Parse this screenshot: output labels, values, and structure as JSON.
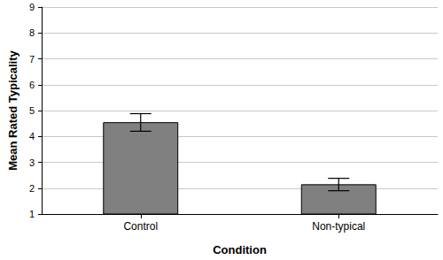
{
  "chart_data": {
    "type": "bar",
    "x_label": "Condition",
    "y_label": "Mean Rated Typicality",
    "categories": [
      "Control",
      "Non-typical"
    ],
    "values": [
      4.55,
      2.15
    ],
    "error_low": [
      4.2,
      1.9
    ],
    "error_high": [
      4.88,
      2.38
    ],
    "color": "#808080",
    "ylim": [
      1,
      9
    ],
    "yticks": [
      1,
      2,
      3,
      4,
      5,
      6,
      7,
      8,
      9
    ],
    "grid": true
  }
}
